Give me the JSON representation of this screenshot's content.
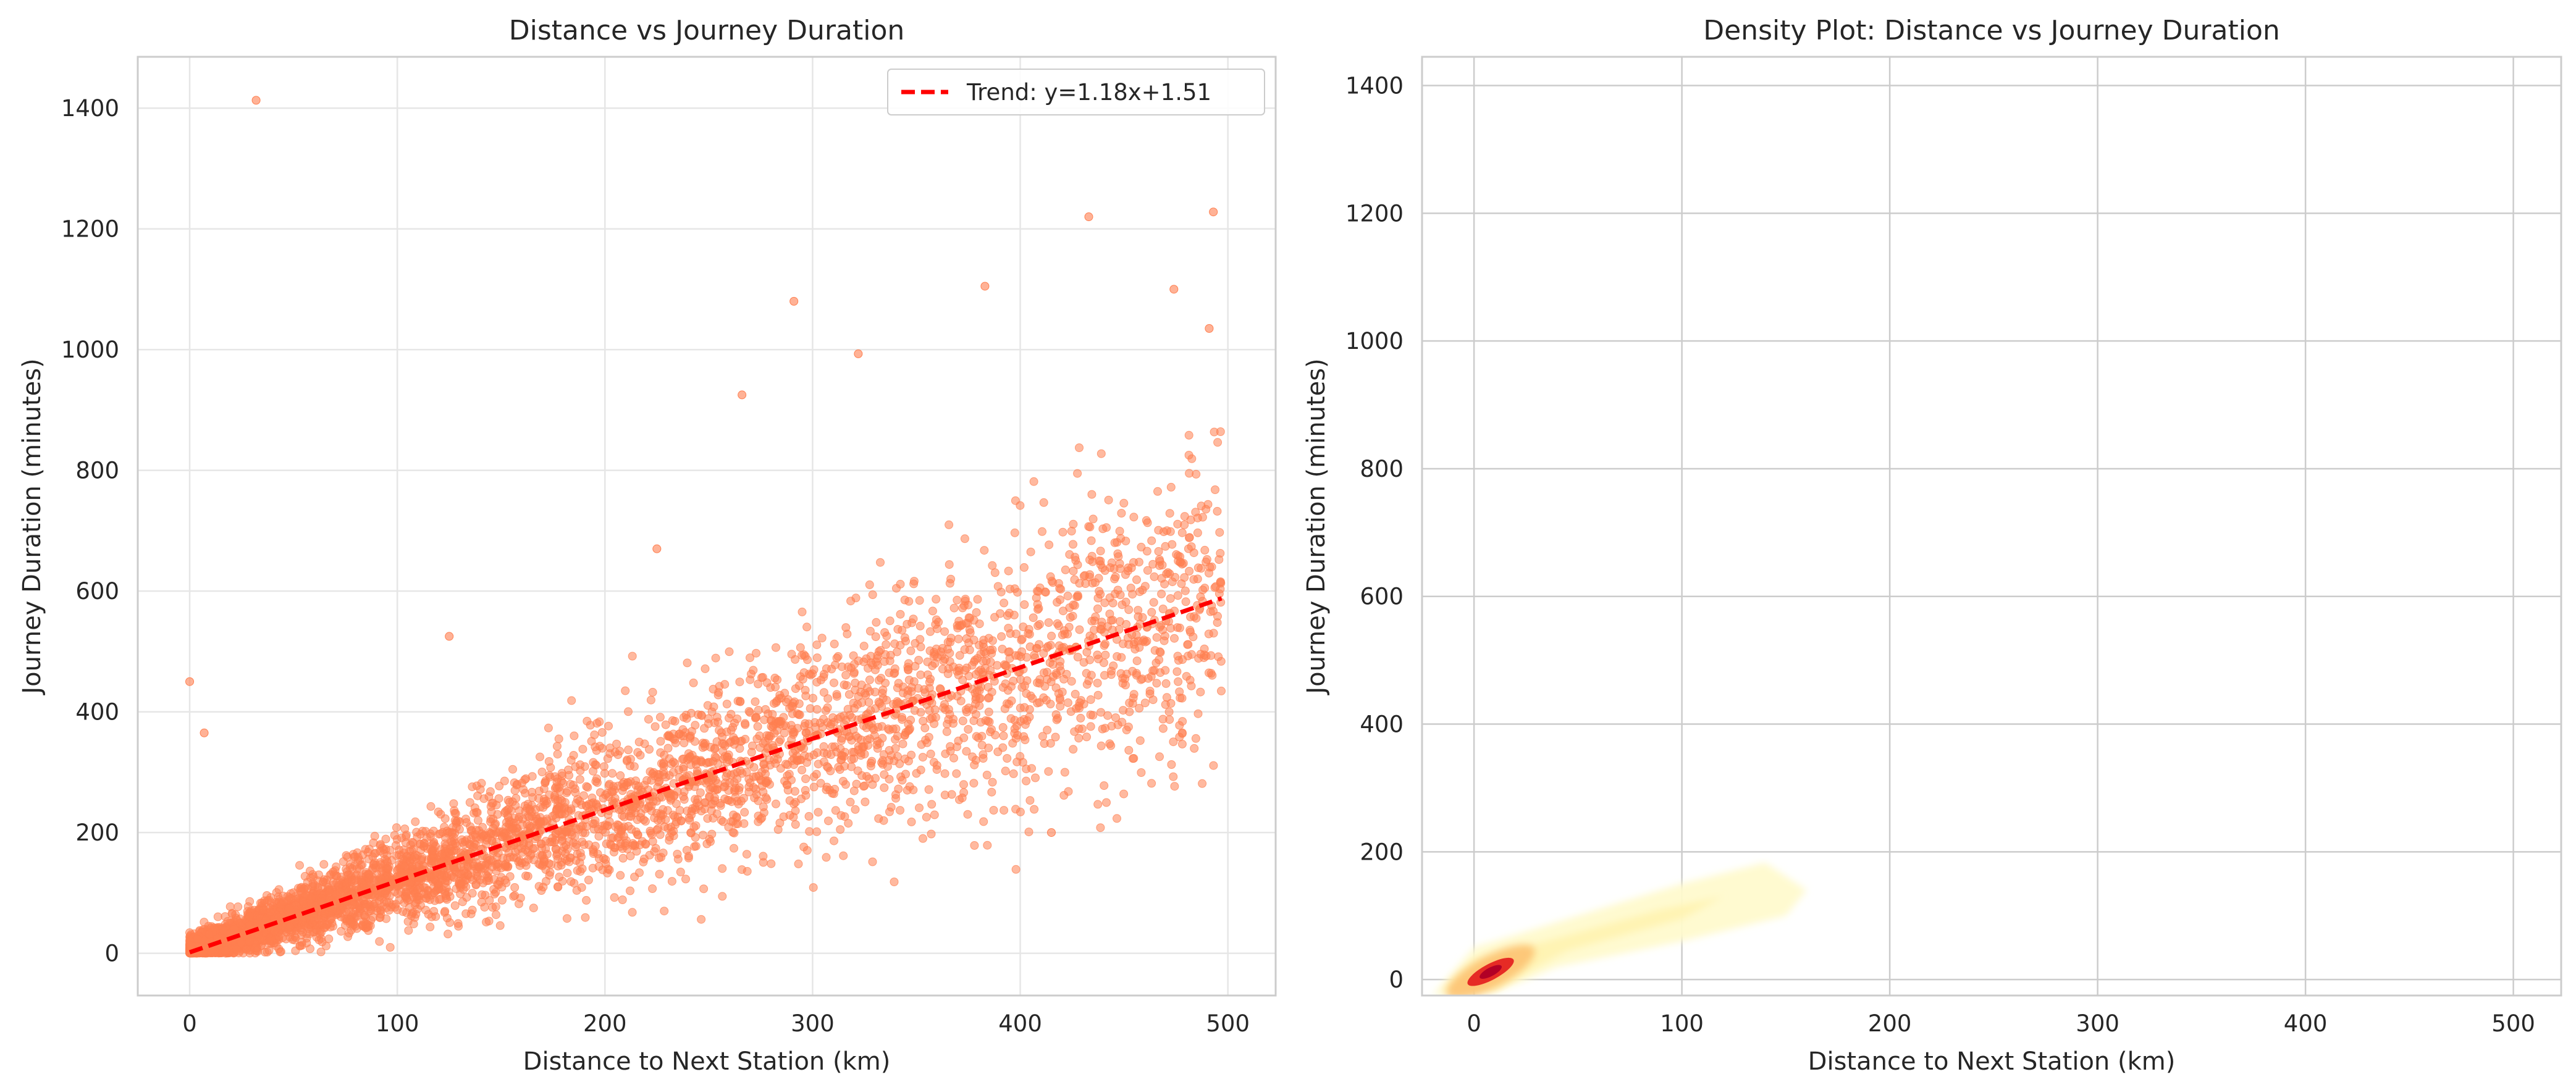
{
  "colors": {
    "scatter": "#FF7F50",
    "trend": "#FF0000",
    "density_low": "#FFFACD",
    "density_mid": "#FDBF6F",
    "density_high": "#B10026",
    "grid": "#E6E6E6",
    "grid_right": "#CCCCCC",
    "spine": "#CCCCCC"
  },
  "chart_data": [
    {
      "type": "scatter",
      "title": "Distance vs Journey Duration",
      "xlabel": "Distance to Next Station (km)",
      "ylabel": "Journey Duration (minutes)",
      "xlim": [
        -25,
        523
      ],
      "ylim": [
        -70,
        1485
      ],
      "xticks": [
        "0",
        "100",
        "200",
        "300",
        "400",
        "500"
      ],
      "yticks": [
        "0",
        "200",
        "400",
        "600",
        "800",
        "1000",
        "1200",
        "1400"
      ],
      "grid": true,
      "legend": {
        "placement": "top-right",
        "entries": [
          "Trend: y=1.18x+1.51"
        ]
      },
      "trend": {
        "slope": 1.18,
        "intercept": 1.51,
        "x_range": [
          0,
          497
        ]
      },
      "series": [
        {
          "description": "dense cloud of points along trend line, spread widening with distance",
          "outliers": [
            {
              "x": 32,
              "y": 1413
            },
            {
              "x": 0,
              "y": 450
            },
            {
              "x": 7,
              "y": 365
            },
            {
              "x": 433,
              "y": 1220
            },
            {
              "x": 493,
              "y": 1228
            },
            {
              "x": 383,
              "y": 1105
            },
            {
              "x": 291,
              "y": 1080
            },
            {
              "x": 474,
              "y": 1100
            },
            {
              "x": 322,
              "y": 993
            },
            {
              "x": 266,
              "y": 925
            },
            {
              "x": 491,
              "y": 1035
            },
            {
              "x": 415,
              "y": 200
            },
            {
              "x": 125,
              "y": 525
            },
            {
              "x": 225,
              "y": 670
            }
          ]
        }
      ]
    },
    {
      "type": "heatmap",
      "title": "Density Plot: Distance vs Journey Duration",
      "xlabel": "Distance to Next Station (km)",
      "ylabel": "Journey Duration (minutes)",
      "xlim": [
        -25,
        523
      ],
      "ylim": [
        -25,
        1445
      ],
      "xticks": [
        "0",
        "100",
        "200",
        "300",
        "400",
        "500"
      ],
      "yticks": [
        "0",
        "200",
        "400",
        "600",
        "800",
        "1000",
        "1200",
        "1400"
      ],
      "grid": true,
      "density_peak": {
        "x": 8,
        "y": 12
      },
      "density_extent": [
        {
          "x": -20,
          "y": -25
        },
        {
          "x": 0,
          "y": 50
        },
        {
          "x": 40,
          "y": 90
        },
        {
          "x": 100,
          "y": 150
        },
        {
          "x": 140,
          "y": 183
        },
        {
          "x": 160,
          "y": 140
        },
        {
          "x": 150,
          "y": 100
        },
        {
          "x": 100,
          "y": 60
        },
        {
          "x": 40,
          "y": 20
        },
        {
          "x": 10,
          "y": -20
        }
      ]
    }
  ]
}
